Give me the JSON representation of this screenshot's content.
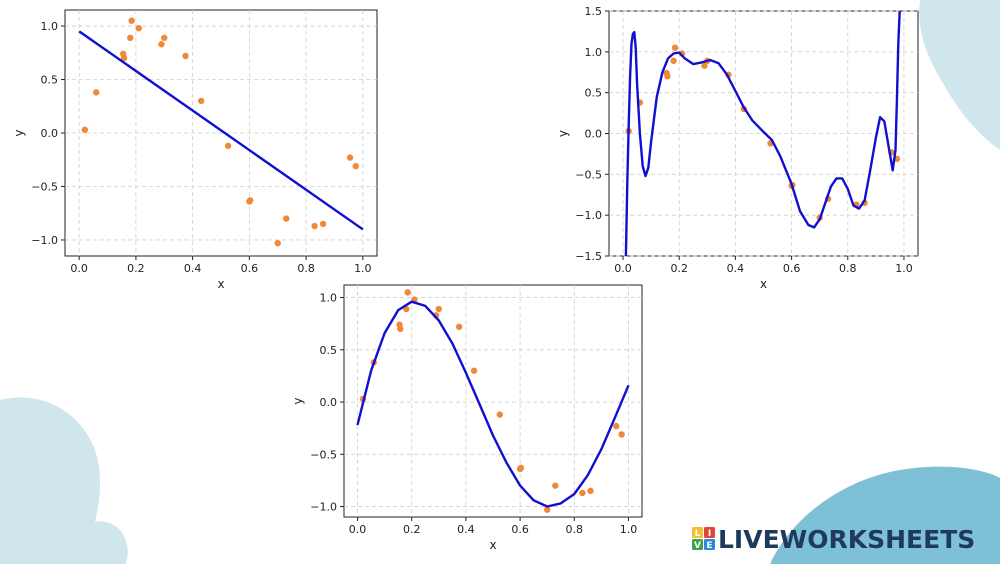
{
  "colors": {
    "fit_line": "#1010d0",
    "points": "#f0883a",
    "grid": "#cfcfcf",
    "background_shapes": "#cfe6ec",
    "background_shapes_strong": "#7ec1d6",
    "brand_text": "#1e3a5f",
    "logo_tiles": [
      "#f2c12e",
      "#e0443b",
      "#3fa34d",
      "#2e86de"
    ]
  },
  "brand": {
    "text": "LIVEWORKSHEETS",
    "logo_letters": [
      "L",
      "I",
      "V",
      "E"
    ]
  },
  "chart_data": [
    {
      "type": "scatter",
      "id": "linear-fit",
      "title": "",
      "xlabel": "x",
      "ylabel": "y",
      "xlim": [
        -0.05,
        1.05
      ],
      "ylim": [
        -1.15,
        1.15
      ],
      "xticks": [
        0.0,
        0.2,
        0.4,
        0.6,
        0.8,
        1.0
      ],
      "yticks": [
        -1.0,
        -0.5,
        0.0,
        0.5,
        1.0
      ],
      "xtick_labels": [
        "0.0",
        "0.2",
        "0.4",
        "0.6",
        "0.8",
        "1.0"
      ],
      "ytick_labels": [
        "−1.0",
        "−0.5",
        "0.0",
        "0.5",
        "1.0"
      ],
      "grid": true,
      "fit": "linear",
      "fit_line": {
        "x": [
          0.0,
          1.0
        ],
        "y": [
          0.95,
          -0.9
        ]
      },
      "points": {
        "x": [
          0.02,
          0.06,
          0.155,
          0.158,
          0.18,
          0.185,
          0.21,
          0.29,
          0.3,
          0.375,
          0.43,
          0.525,
          0.6,
          0.603,
          0.7,
          0.73,
          0.83,
          0.86,
          0.955,
          0.975
        ],
        "y": [
          0.03,
          0.38,
          0.74,
          0.7,
          0.89,
          1.05,
          0.98,
          0.83,
          0.89,
          0.72,
          0.3,
          -0.12,
          -0.64,
          -0.63,
          -1.03,
          -0.8,
          -0.87,
          -0.85,
          -0.23,
          -0.31
        ]
      }
    },
    {
      "type": "scatter",
      "id": "high-degree-fit",
      "title": "",
      "xlabel": "x",
      "ylabel": "y",
      "xlim": [
        -0.05,
        1.05
      ],
      "ylim": [
        -1.5,
        1.5
      ],
      "xticks": [
        0.0,
        0.2,
        0.4,
        0.6,
        0.8,
        1.0
      ],
      "yticks": [
        -1.5,
        -1.0,
        -0.5,
        0.0,
        0.5,
        1.0,
        1.5
      ],
      "xtick_labels": [
        "0.0",
        "0.2",
        "0.4",
        "0.6",
        "0.8",
        "1.0"
      ],
      "ytick_labels": [
        "−1.5",
        "−1.0",
        "−0.5",
        "0.0",
        "0.5",
        "1.0",
        "1.5"
      ],
      "grid": true,
      "fit": "high-degree polynomial",
      "fit_line": {
        "x": [
          0.01,
          0.015,
          0.02,
          0.025,
          0.03,
          0.035,
          0.04,
          0.045,
          0.05,
          0.06,
          0.07,
          0.08,
          0.09,
          0.1,
          0.12,
          0.14,
          0.16,
          0.18,
          0.2,
          0.22,
          0.25,
          0.28,
          0.31,
          0.34,
          0.37,
          0.4,
          0.43,
          0.46,
          0.5,
          0.53,
          0.56,
          0.6,
          0.63,
          0.66,
          0.68,
          0.7,
          0.72,
          0.74,
          0.76,
          0.78,
          0.8,
          0.82,
          0.84,
          0.86,
          0.88,
          0.9,
          0.915,
          0.93,
          0.945,
          0.96,
          0.97,
          0.975,
          0.98,
          0.985
        ],
        "y": [
          -1.5,
          -0.6,
          0.1,
          0.7,
          1.1,
          1.22,
          1.24,
          1.05,
          0.6,
          0.0,
          -0.4,
          -0.52,
          -0.42,
          -0.1,
          0.45,
          0.75,
          0.92,
          0.98,
          0.99,
          0.92,
          0.85,
          0.87,
          0.9,
          0.86,
          0.72,
          0.52,
          0.32,
          0.16,
          0.02,
          -0.08,
          -0.28,
          -0.62,
          -0.95,
          -1.12,
          -1.15,
          -1.05,
          -0.85,
          -0.65,
          -0.55,
          -0.55,
          -0.68,
          -0.88,
          -0.92,
          -0.82,
          -0.45,
          -0.05,
          0.2,
          0.15,
          -0.15,
          -0.45,
          -0.2,
          0.4,
          1.1,
          1.5
        ]
      },
      "points": {
        "x": [
          0.02,
          0.06,
          0.155,
          0.158,
          0.18,
          0.185,
          0.21,
          0.29,
          0.3,
          0.375,
          0.43,
          0.525,
          0.6,
          0.603,
          0.7,
          0.73,
          0.83,
          0.86,
          0.955,
          0.975
        ],
        "y": [
          0.03,
          0.38,
          0.74,
          0.7,
          0.89,
          1.05,
          0.98,
          0.83,
          0.89,
          0.72,
          0.3,
          -0.12,
          -0.64,
          -0.63,
          -1.03,
          -0.8,
          -0.87,
          -0.85,
          -0.23,
          -0.31
        ]
      }
    },
    {
      "type": "scatter",
      "id": "cubic-fit",
      "title": "",
      "xlabel": "x",
      "ylabel": "y",
      "xlim": [
        -0.05,
        1.05
      ],
      "ylim": [
        -1.1,
        1.12
      ],
      "xticks": [
        0.0,
        0.2,
        0.4,
        0.6,
        0.8,
        1.0
      ],
      "yticks": [
        -1.0,
        -0.5,
        0.0,
        0.5,
        1.0
      ],
      "xtick_labels": [
        "0.0",
        "0.2",
        "0.4",
        "0.6",
        "0.8",
        "1.0"
      ],
      "ytick_labels": [
        "−1.0",
        "−0.5",
        "0.0",
        "0.5",
        "1.0"
      ],
      "grid": true,
      "fit": "cubic polynomial",
      "fit_line": {
        "x": [
          0.0,
          0.05,
          0.1,
          0.15,
          0.2,
          0.25,
          0.3,
          0.35,
          0.4,
          0.45,
          0.5,
          0.55,
          0.6,
          0.65,
          0.7,
          0.75,
          0.8,
          0.85,
          0.9,
          0.95,
          1.0
        ],
        "y": [
          -0.22,
          0.3,
          0.66,
          0.88,
          0.96,
          0.92,
          0.78,
          0.56,
          0.28,
          -0.02,
          -0.32,
          -0.58,
          -0.8,
          -0.94,
          -1.0,
          -0.97,
          -0.88,
          -0.7,
          -0.45,
          -0.15,
          0.16
        ]
      },
      "points": {
        "x": [
          0.02,
          0.06,
          0.155,
          0.158,
          0.18,
          0.185,
          0.21,
          0.29,
          0.3,
          0.375,
          0.43,
          0.525,
          0.6,
          0.603,
          0.7,
          0.73,
          0.83,
          0.86,
          0.955,
          0.975
        ],
        "y": [
          0.03,
          0.38,
          0.74,
          0.7,
          0.89,
          1.05,
          0.98,
          0.83,
          0.89,
          0.72,
          0.3,
          -0.12,
          -0.64,
          -0.63,
          -1.03,
          -0.8,
          -0.87,
          -0.85,
          -0.23,
          -0.31
        ]
      }
    }
  ]
}
